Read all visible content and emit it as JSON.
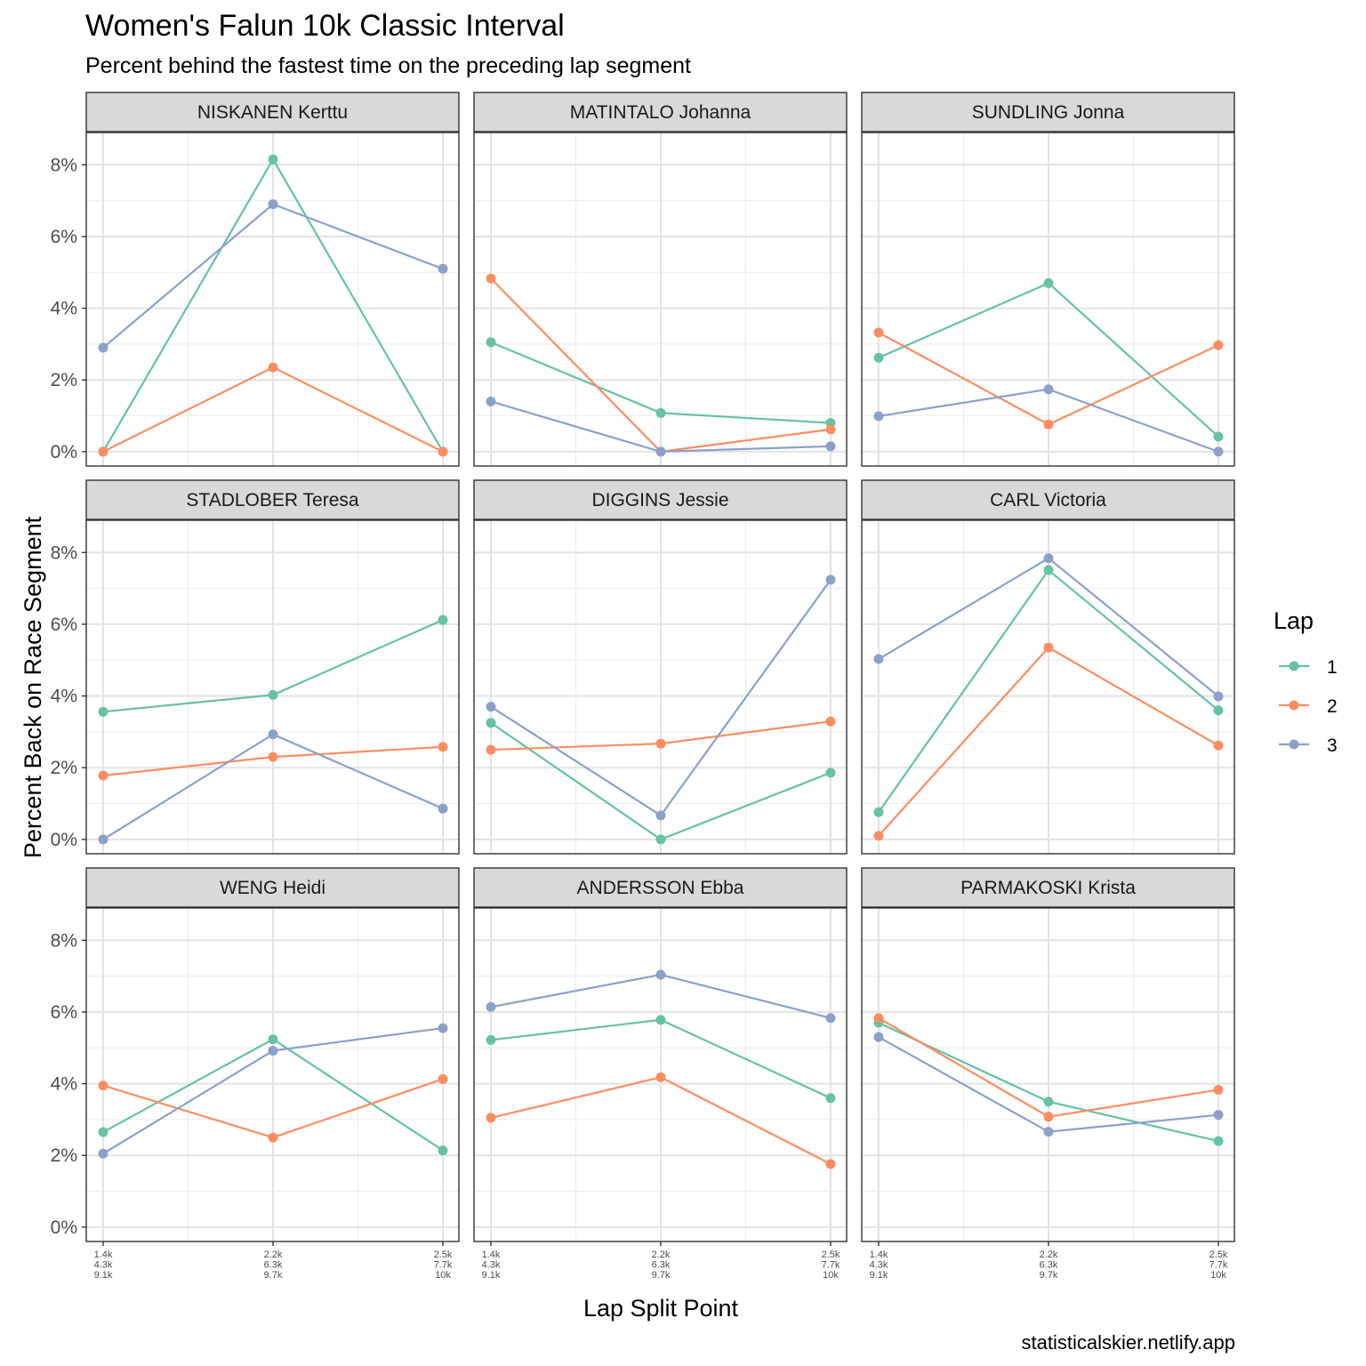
{
  "chart_data": {
    "type": "line",
    "title": "Women's Falun 10k Classic Interval",
    "subtitle": "Percent behind the fastest time on the preceding lap segment",
    "xlabel": "Lap Split Point",
    "ylabel": "Percent Back on Race Segment",
    "caption": "statisticalskier.netlify.app",
    "x_categories": [
      [
        "1.4k",
        "4.3k",
        "9.1k"
      ],
      [
        "2.2k",
        "6.3k",
        "9.7k"
      ],
      [
        "2.5k",
        "7.7k",
        "10k"
      ]
    ],
    "y_ticks": [
      "0%",
      "2%",
      "4%",
      "6%",
      "8%"
    ],
    "ylim": [
      -0.4,
      8.9
    ],
    "grid": true,
    "legend": {
      "title": "Lap",
      "position": "right",
      "entries": [
        {
          "label": "1",
          "color": "#66C2A5"
        },
        {
          "label": "2",
          "color": "#FC8D62"
        },
        {
          "label": "3",
          "color": "#8DA0CB"
        }
      ]
    },
    "facets": [
      {
        "name": "NISKANEN Kerttu",
        "series": [
          {
            "lap": "1",
            "values": [
              0.0,
              8.15,
              0.0
            ]
          },
          {
            "lap": "2",
            "values": [
              0.0,
              2.35,
              0.0
            ]
          },
          {
            "lap": "3",
            "values": [
              2.9,
              6.9,
              5.1
            ]
          }
        ]
      },
      {
        "name": "MATINTALO Johanna",
        "series": [
          {
            "lap": "1",
            "values": [
              3.05,
              1.08,
              0.8
            ]
          },
          {
            "lap": "2",
            "values": [
              4.83,
              0.0,
              0.62
            ]
          },
          {
            "lap": "3",
            "values": [
              1.4,
              0.0,
              0.15
            ]
          }
        ]
      },
      {
        "name": "SUNDLING Jonna",
        "series": [
          {
            "lap": "1",
            "values": [
              2.62,
              4.7,
              0.42
            ]
          },
          {
            "lap": "2",
            "values": [
              3.32,
              0.76,
              2.97
            ]
          },
          {
            "lap": "3",
            "values": [
              0.99,
              1.74,
              0.0
            ]
          }
        ]
      },
      {
        "name": "STADLOBER Teresa",
        "series": [
          {
            "lap": "1",
            "values": [
              3.56,
              4.03,
              6.12
            ]
          },
          {
            "lap": "2",
            "values": [
              1.78,
              2.3,
              2.58
            ]
          },
          {
            "lap": "3",
            "values": [
              0.0,
              2.93,
              0.86
            ]
          }
        ]
      },
      {
        "name": "DIGGINS Jessie",
        "series": [
          {
            "lap": "1",
            "values": [
              3.25,
              0.0,
              1.86
            ]
          },
          {
            "lap": "2",
            "values": [
              2.5,
              2.67,
              3.29
            ]
          },
          {
            "lap": "3",
            "values": [
              3.7,
              0.67,
              7.24
            ]
          }
        ]
      },
      {
        "name": "CARL Victoria",
        "series": [
          {
            "lap": "1",
            "values": [
              0.76,
              7.51,
              3.6
            ]
          },
          {
            "lap": "2",
            "values": [
              0.1,
              5.35,
              2.62
            ]
          },
          {
            "lap": "3",
            "values": [
              5.03,
              7.84,
              3.99
            ]
          }
        ]
      },
      {
        "name": "WENG Heidi",
        "series": [
          {
            "lap": "1",
            "values": [
              2.65,
              5.24,
              2.14
            ]
          },
          {
            "lap": "2",
            "values": [
              3.95,
              2.5,
              4.13
            ]
          },
          {
            "lap": "3",
            "values": [
              2.05,
              4.92,
              5.55
            ]
          }
        ]
      },
      {
        "name": "ANDERSSON Ebba",
        "series": [
          {
            "lap": "1",
            "values": [
              5.22,
              5.78,
              3.6
            ]
          },
          {
            "lap": "2",
            "values": [
              3.05,
              4.18,
              1.76
            ]
          },
          {
            "lap": "3",
            "values": [
              6.14,
              7.04,
              5.83
            ]
          }
        ]
      },
      {
        "name": "PARMAKOSKI Krista",
        "series": [
          {
            "lap": "1",
            "values": [
              5.7,
              3.5,
              2.4
            ]
          },
          {
            "lap": "2",
            "values": [
              5.83,
              3.08,
              3.83
            ]
          },
          {
            "lap": "3",
            "values": [
              5.3,
              2.66,
              3.13
            ]
          }
        ]
      }
    ]
  }
}
